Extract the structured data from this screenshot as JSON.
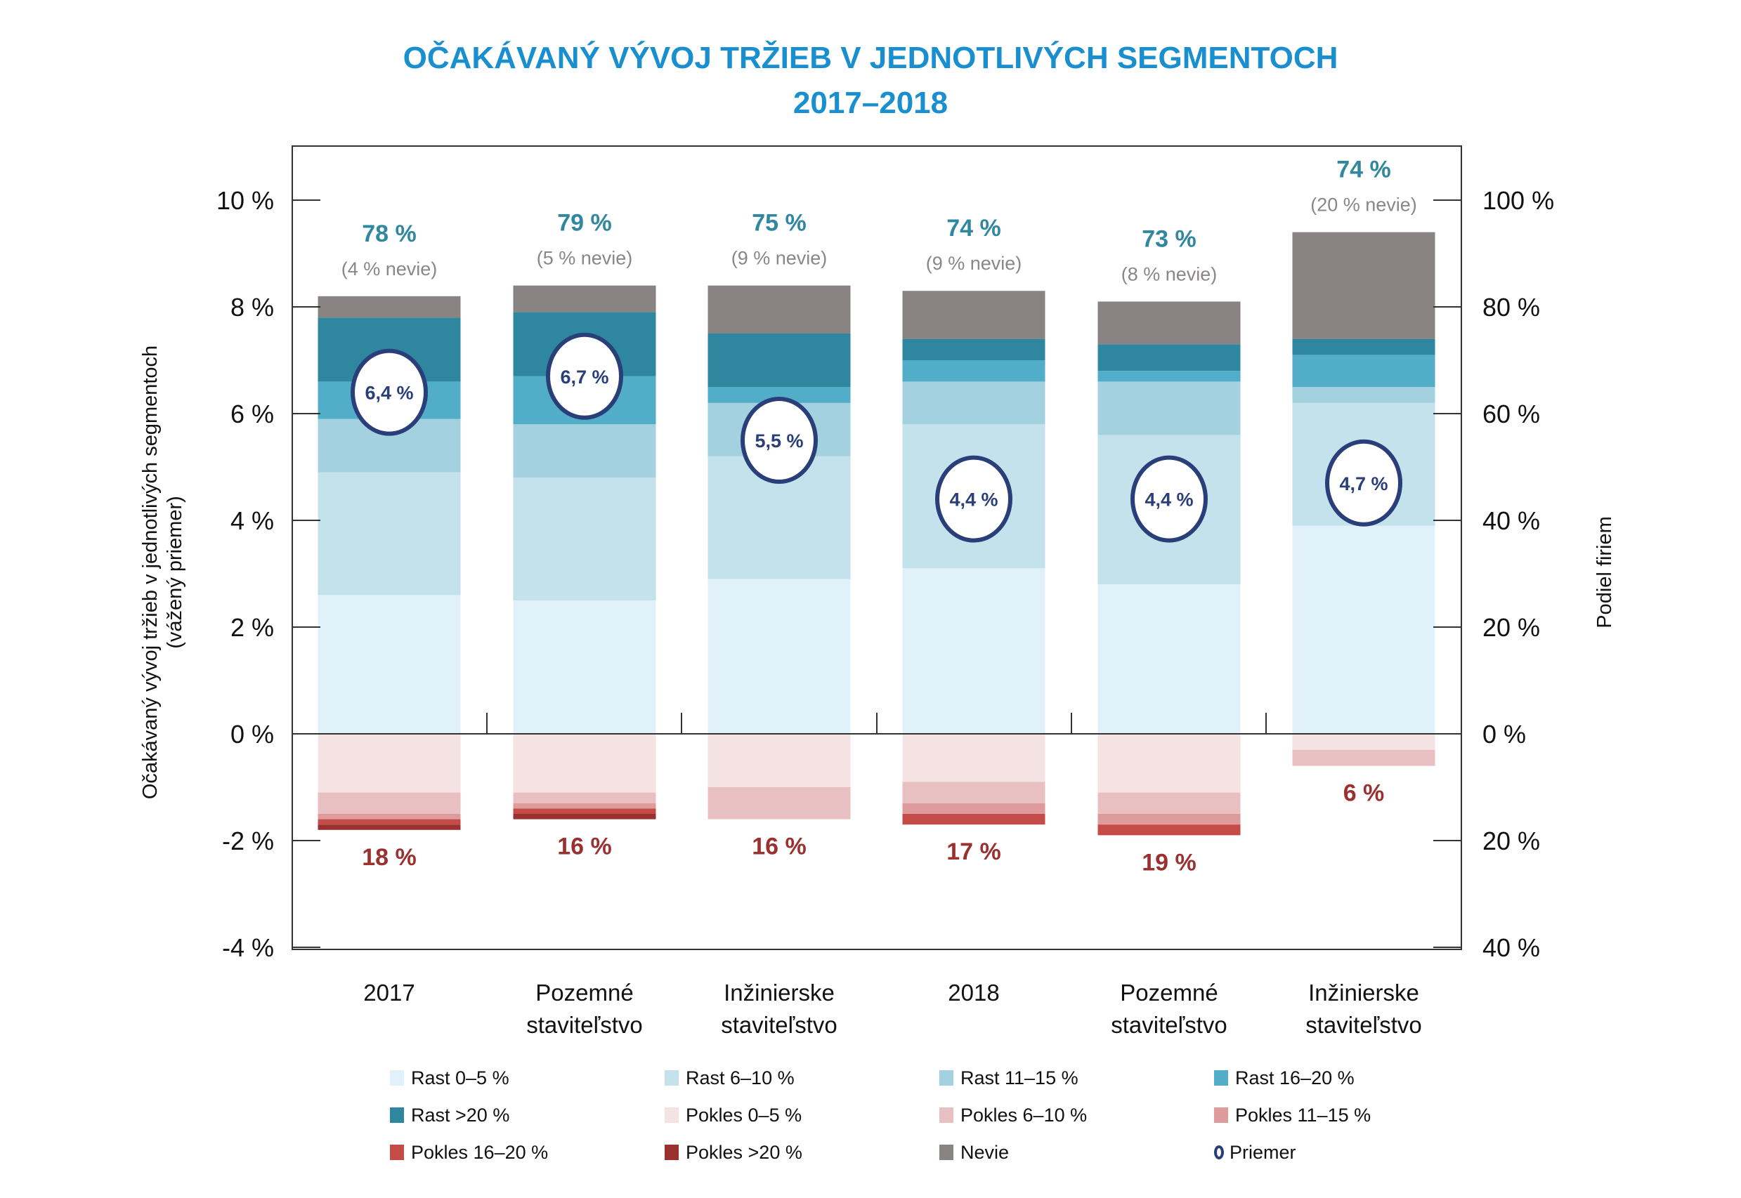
{
  "chart_data": {
    "type": "bar",
    "title": "OČAKÁVANÝ VÝVOJ TRŽIEB V JEDNOTLIVÝCH SEGMENTOCH",
    "subtitle": "2017–2018",
    "ylabel": "Očakávaný vývoj tržieb v jednotlivých segmentoch",
    "ylabel_sub": "(vážený priemer)",
    "y2label": "Podiel firiem",
    "ylim": [
      -4,
      10
    ],
    "yticks": [
      {
        "v": 10,
        "label": "10 %"
      },
      {
        "v": 8,
        "label": "8 %"
      },
      {
        "v": 6,
        "label": "6 %"
      },
      {
        "v": 4,
        "label": "4 %"
      },
      {
        "v": 2,
        "label": "2 %"
      },
      {
        "v": 0,
        "label": "0 %"
      },
      {
        "v": -2,
        "label": "-2 %"
      },
      {
        "v": -4,
        "label": "-4 %"
      }
    ],
    "y2ticks": [
      {
        "v": 10,
        "label": "100 %"
      },
      {
        "v": 8,
        "label": "80 %"
      },
      {
        "v": 6,
        "label": "60 %"
      },
      {
        "v": 4,
        "label": "40 %"
      },
      {
        "v": 2,
        "label": "20 %"
      },
      {
        "v": 0,
        "label": "0 %"
      },
      {
        "v": -2,
        "label": "20 %"
      },
      {
        "v": -4,
        "label": "40 %"
      }
    ],
    "categories": [
      [
        "2017"
      ],
      [
        "Pozemné",
        "staviteľstvo"
      ],
      [
        "Inžinierske",
        "staviteľstvo"
      ],
      [
        "2018"
      ],
      [
        "Pozemné",
        "staviteľstvo"
      ],
      [
        "Inžinierske",
        "staviteľstvo"
      ]
    ],
    "positive_series": [
      {
        "name": "Rast 0–5 %",
        "color": "#e1f1f9",
        "values": [
          2.6,
          2.5,
          2.9,
          3.1,
          2.8,
          3.9
        ]
      },
      {
        "name": "Rast 6–10 %",
        "color": "#c4e2ec",
        "values": [
          2.3,
          2.3,
          2.3,
          2.7,
          2.8,
          2.3
        ]
      },
      {
        "name": "Rast 11–15 %",
        "color": "#a4d1e0",
        "values": [
          1.0,
          1.0,
          1.0,
          0.8,
          1.0,
          0.3
        ]
      },
      {
        "name": "Rast 16–20 %",
        "color": "#52adc9",
        "values": [
          0.7,
          0.9,
          0.3,
          0.4,
          0.2,
          0.6
        ]
      },
      {
        "name": "Rast >20 %",
        "color": "#2f879f",
        "values": [
          1.2,
          1.2,
          1.0,
          0.4,
          0.5,
          0.3
        ]
      },
      {
        "name": "Nevie",
        "color": "#898483",
        "values": [
          0.4,
          0.5,
          0.9,
          0.9,
          0.8,
          2.0
        ]
      }
    ],
    "negative_series": [
      {
        "name": "Pokles 0–5 %",
        "color": "#f5e2e3",
        "values": [
          1.1,
          1.1,
          1.0,
          0.9,
          1.1,
          0.3
        ]
      },
      {
        "name": "Pokles 6–10 %",
        "color": "#e8c0c1",
        "values": [
          0.4,
          0.2,
          0.6,
          0.4,
          0.4,
          0.3
        ]
      },
      {
        "name": "Pokles 11–15 %",
        "color": "#dd9c9b",
        "values": [
          0.1,
          0.1,
          0.0,
          0.2,
          0.2,
          0.0
        ]
      },
      {
        "name": "Pokles 16–20 %",
        "color": "#c44b48",
        "values": [
          0.1,
          0.1,
          0.0,
          0.2,
          0.2,
          0.0
        ]
      },
      {
        "name": "Pokles >20 %",
        "color": "#9a312f",
        "values": [
          0.1,
          0.1,
          0.0,
          0.0,
          0.0,
          0.0
        ]
      }
    ],
    "averages": [
      6.4,
      6.7,
      5.5,
      4.4,
      4.4,
      4.7
    ],
    "average_labels": [
      "6,4 %",
      "6,7 %",
      "5,5 %",
      "4,4 %",
      "4,4 %",
      "4,7 %"
    ],
    "growth_share_labels": [
      "78 %",
      "79 %",
      "75 %",
      "74 %",
      "73 %",
      "74 %"
    ],
    "dont_know_labels": [
      "(4 % nevie)",
      "(5 % nevie)",
      "(9 % nevie)",
      "(9 % nevie)",
      "(8 % nevie)",
      "(20 % nevie)"
    ],
    "decline_share_labels": [
      "18 %",
      "16 %",
      "16 %",
      "17 %",
      "19 %",
      "6 %"
    ],
    "colors": {
      "title": "#1a8fd0",
      "growth_label": "#2f87a0",
      "nevie_label": "#8a8786",
      "decline_label": "#9a312f",
      "avg_ring": "#2a3f7a"
    },
    "legend": [
      {
        "label": "Rast 0–5 %",
        "color": "#e1f1f9"
      },
      {
        "label": "Rast 6–10 %",
        "color": "#c4e2ec"
      },
      {
        "label": "Rast 11–15 %",
        "color": "#a4d1e0"
      },
      {
        "label": "Rast 16–20 %",
        "color": "#52adc9"
      },
      {
        "label": "Rast >20 %",
        "color": "#2f879f"
      },
      {
        "label": "Pokles 0–5 %",
        "color": "#f5e2e3"
      },
      {
        "label": "Pokles 6–10 %",
        "color": "#e8c0c1"
      },
      {
        "label": "Pokles 11–15 %",
        "color": "#dd9c9b"
      },
      {
        "label": "Pokles 16–20 %",
        "color": "#c44b48"
      },
      {
        "label": "Pokles >20 %",
        "color": "#9a312f"
      },
      {
        "label": "Nevie",
        "color": "#898483"
      },
      {
        "label": "Priemer",
        "color": "#2a3f7a",
        "marker": "ring"
      }
    ],
    "legend_position": "bottom"
  }
}
